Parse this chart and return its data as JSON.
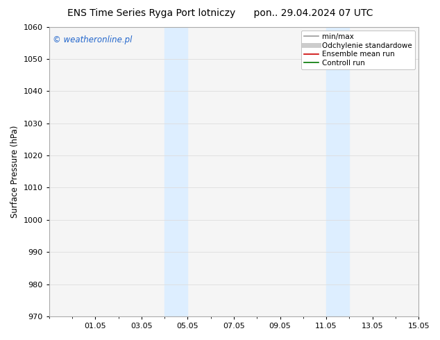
{
  "title_left": "ENS Time Series Ryga Port lotniczy",
  "title_right": "pon.. 29.04.2024 07 UTC",
  "ylabel": "Surface Pressure (hPa)",
  "ylim": [
    970,
    1060
  ],
  "yticks": [
    970,
    980,
    990,
    1000,
    1010,
    1020,
    1030,
    1040,
    1050,
    1060
  ],
  "xlim": [
    0,
    16
  ],
  "xtick_labels": [
    "01.05",
    "03.05",
    "05.05",
    "07.05",
    "09.05",
    "11.05",
    "13.05",
    "15.05"
  ],
  "xtick_positions": [
    2,
    4,
    6,
    8,
    10,
    12,
    14,
    16
  ],
  "shaded_bands": [
    {
      "x_start": 5,
      "x_end": 6
    },
    {
      "x_start": 12,
      "x_end": 13
    }
  ],
  "shade_color": "#ddeeff",
  "watermark_text": "© weatheronline.pl",
  "watermark_color": "#2266cc",
  "legend_entries": [
    {
      "label": "min/max",
      "color": "#999999",
      "lw": 1.2,
      "style": "solid"
    },
    {
      "label": "Odchylenie standardowe",
      "color": "#cccccc",
      "lw": 5,
      "style": "solid"
    },
    {
      "label": "Ensemble mean run",
      "color": "#cc0000",
      "lw": 1.2,
      "style": "solid"
    },
    {
      "label": "Controll run",
      "color": "#007700",
      "lw": 1.2,
      "style": "solid"
    }
  ],
  "bg_color": "#ffffff",
  "plot_bg_color": "#f5f5f5",
  "grid_color": "#dddddd",
  "title_fontsize": 10,
  "watermark_fontsize": 8.5,
  "label_fontsize": 8.5,
  "tick_fontsize": 8,
  "legend_fontsize": 7.5
}
